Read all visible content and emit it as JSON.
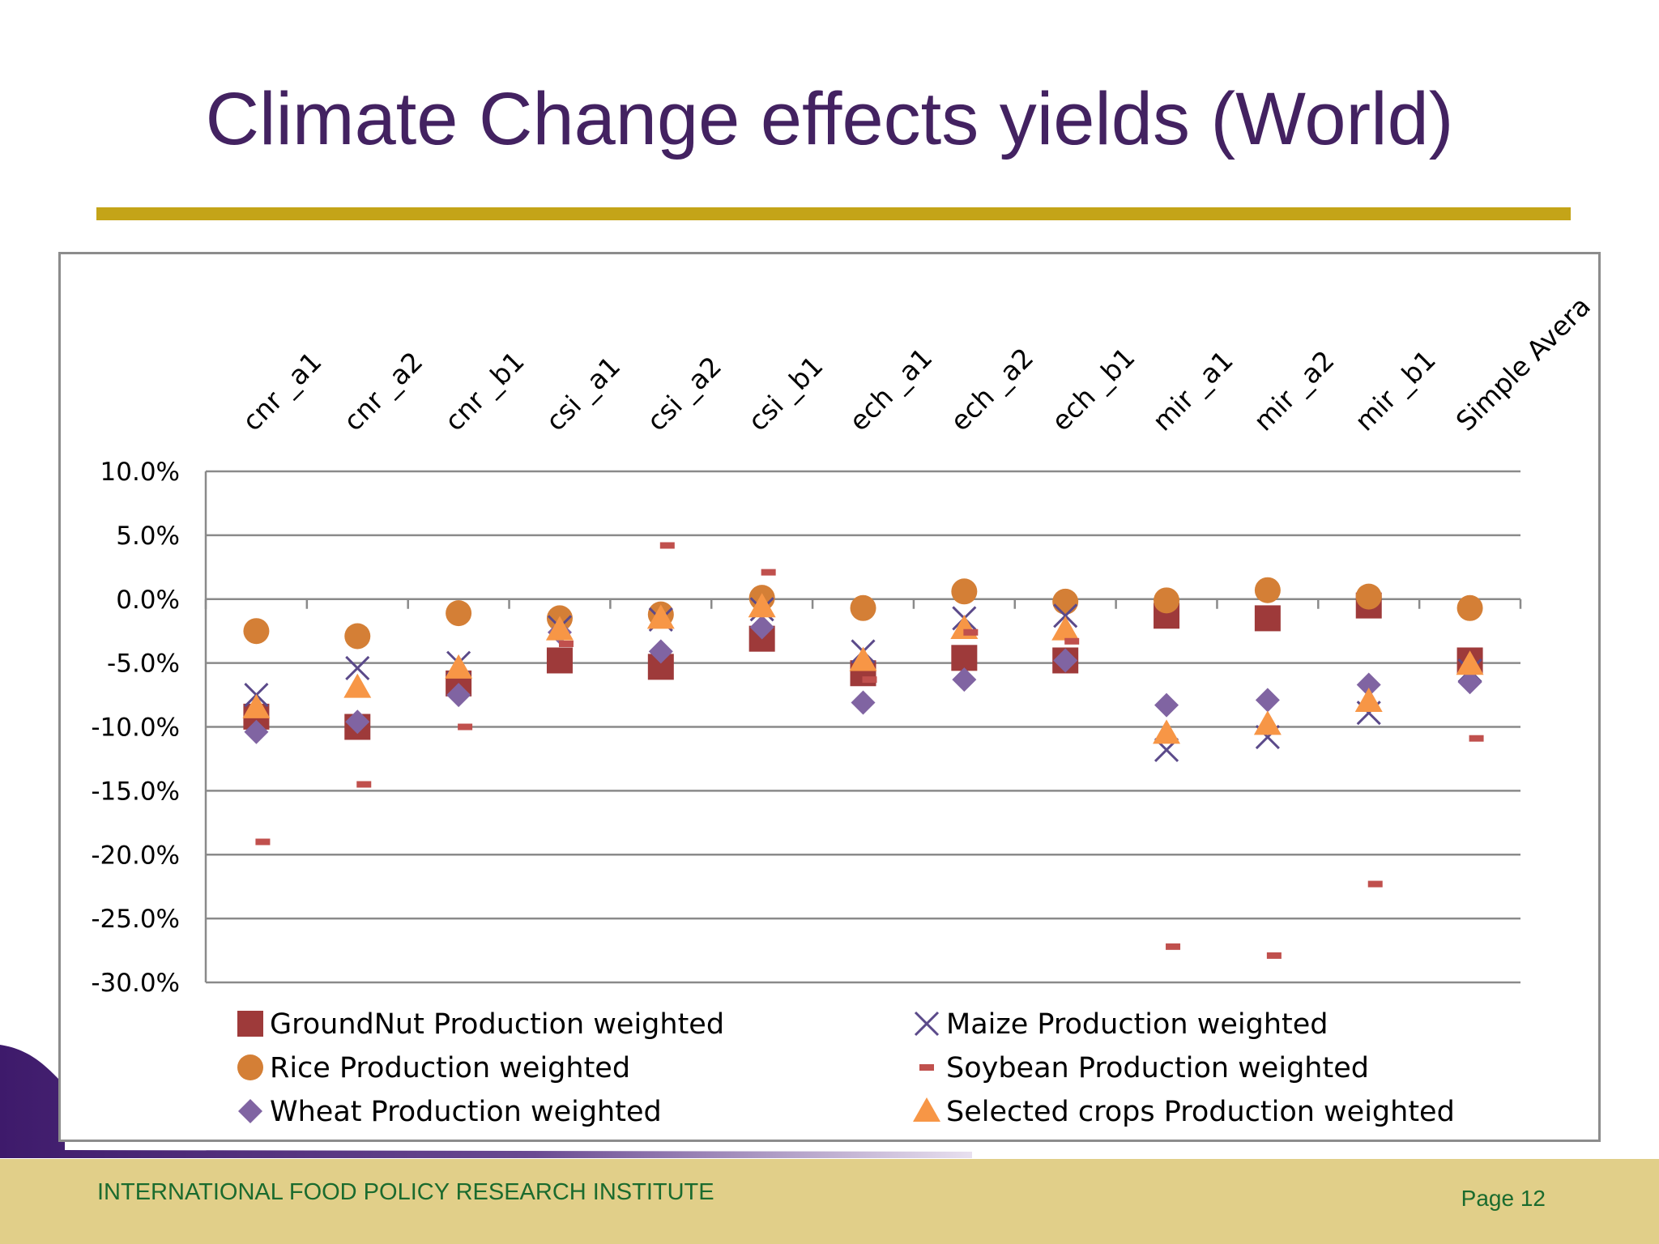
{
  "slide": {
    "title": "Climate Change effects yields (World)",
    "footer_org": "INTERNATIONAL FOOD POLICY RESEARCH INSTITUTE",
    "footer_page": "Page 12"
  },
  "colors": {
    "title": "#432261",
    "rule": "#c4a418",
    "footer_bg": "#e1cf89",
    "footer_text": "#1b6b2e",
    "groundnut": "#9e3a3a",
    "maize": "#5b4a8a",
    "rice": "#d47f36",
    "soybean": "#c0504d",
    "wheat": "#8064a2",
    "selected": "#f79646"
  },
  "chart_data": {
    "type": "scatter",
    "categories": [
      "cnr _a1",
      "cnr _a2",
      "cnr _b1",
      "csi _a1",
      "csi _a2",
      "csi _b1",
      "ech _a1",
      "ech _a2",
      "ech _b1",
      "mir _a1",
      "mir _a2",
      "mir _b1",
      "Simple Avera"
    ],
    "ylim": [
      -30,
      10
    ],
    "yticks": [
      "10.0%",
      "5.0%",
      "0.0%",
      "-5.0%",
      "-10.0%",
      "-15.0%",
      "-20.0%",
      "-25.0%",
      "-30.0%"
    ],
    "ytick_values": [
      10,
      5,
      0,
      -5,
      -10,
      -15,
      -20,
      -25,
      -30
    ],
    "grid": true,
    "legend_position": "bottom",
    "series": [
      {
        "name": "GroundNut Production weighted",
        "marker": "square",
        "color_key": "groundnut",
        "values": [
          -9.2,
          -10.0,
          -6.6,
          -4.8,
          -5.3,
          -3.1,
          -5.8,
          -4.6,
          -4.8,
          -1.3,
          -1.5,
          -0.5,
          -4.8
        ]
      },
      {
        "name": "Maize Production weighted",
        "marker": "x",
        "color_key": "maize",
        "values": [
          -7.5,
          -5.4,
          -5.0,
          -2.2,
          -1.6,
          -0.8,
          -4.1,
          -1.5,
          -1.3,
          -11.8,
          -10.8,
          -8.9,
          -5.6
        ]
      },
      {
        "name": "Rice Production weighted",
        "marker": "circle",
        "color_key": "rice",
        "values": [
          -2.5,
          -2.9,
          -1.1,
          -1.5,
          -1.2,
          0.1,
          -0.7,
          0.6,
          -0.2,
          -0.1,
          0.7,
          0.2,
          -0.7
        ]
      },
      {
        "name": "Soybean Production weighted",
        "marker": "dash",
        "color_key": "soybean",
        "values": [
          -19.0,
          -14.5,
          -10.0,
          -3.5,
          4.2,
          2.1,
          -6.3,
          -2.6,
          -3.3,
          -27.2,
          -27.9,
          -22.3,
          -10.9
        ]
      },
      {
        "name": "Wheat Production weighted",
        "marker": "diamond",
        "color_key": "wheat",
        "values": [
          -10.4,
          -9.6,
          -7.5,
          -2.6,
          -4.1,
          -2.2,
          -8.1,
          -6.3,
          -4.8,
          -8.3,
          -7.9,
          -6.7,
          -6.5
        ]
      },
      {
        "name": "Selected crops Production weighted",
        "marker": "triangle",
        "color_key": "selected",
        "values": [
          -8.5,
          -6.9,
          -5.4,
          -2.4,
          -1.5,
          -0.6,
          -4.8,
          -2.3,
          -2.4,
          -10.5,
          -9.8,
          -8.0,
          -5.1
        ]
      }
    ]
  }
}
